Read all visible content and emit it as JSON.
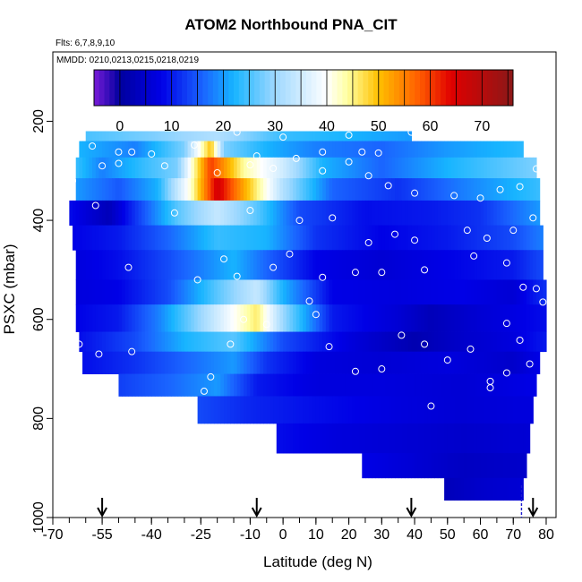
{
  "chart_data": {
    "type": "heatmap",
    "title": "ATOM2 Northbound PNA_CIT",
    "notes": [
      "Flts: 6,7,8,9,10",
      "MMDD: 0210,0213,0215,0218,0219"
    ],
    "xlabel": "Latitude (deg N)",
    "ylabel": "PSXC (mbar)",
    "xlim": [
      -70,
      83
    ],
    "ylim": [
      1000,
      60
    ],
    "y_reversed": true,
    "x_ticks": [
      -70,
      -55,
      -40,
      -25,
      -10,
      0,
      10,
      20,
      30,
      40,
      50,
      60,
      70,
      80
    ],
    "x_minor_step": 5,
    "y_ticks": [
      200,
      400,
      600,
      800,
      1000
    ],
    "colorbar": {
      "range": [
        -5,
        76
      ],
      "ticks": [
        0,
        10,
        20,
        30,
        40,
        50,
        60,
        70
      ],
      "colors": [
        "#7a1cd9",
        "#00009e",
        "#0000e6",
        "#1a64ff",
        "#17b4ff",
        "#9ed8ff",
        "#ffffff",
        "#ffffa0",
        "#ffc000",
        "#ff5a00",
        "#e00000",
        "#8b1818"
      ],
      "stops": [
        -5,
        0,
        8,
        16,
        22,
        30,
        40,
        44,
        50,
        58,
        64,
        76
      ]
    },
    "legend": "colorbar top",
    "arrows_lat": [
      -55,
      -8,
      39,
      76
    ],
    "dashed_lat": 72.5,
    "bands": [
      {
        "p_top": 220,
        "p_bot": 240,
        "x_start": -60,
        "x_end": 39,
        "c": [
          [
            -60,
            25
          ],
          [
            -40,
            28
          ],
          [
            -20,
            32
          ],
          [
            0,
            24
          ],
          [
            20,
            22
          ],
          [
            39,
            20
          ]
        ]
      },
      {
        "p_top": 240,
        "p_bot": 273,
        "x_start": -62,
        "x_end": 73,
        "c": [
          [
            -62,
            22
          ],
          [
            -45,
            18
          ],
          [
            -30,
            28
          ],
          [
            -22,
            50
          ],
          [
            -18,
            28
          ],
          [
            -5,
            22
          ],
          [
            10,
            18
          ],
          [
            30,
            16
          ],
          [
            50,
            20
          ],
          [
            73,
            23
          ]
        ]
      },
      {
        "p_top": 273,
        "p_bot": 315,
        "x_start": -63,
        "x_end": 77,
        "c": [
          [
            -63,
            24
          ],
          [
            -55,
            18
          ],
          [
            -42,
            24
          ],
          [
            -32,
            28
          ],
          [
            -22,
            60
          ],
          [
            -12,
            44
          ],
          [
            0,
            35
          ],
          [
            12,
            22
          ],
          [
            30,
            16
          ],
          [
            50,
            22
          ],
          [
            77,
            28
          ]
        ]
      },
      {
        "p_top": 315,
        "p_bot": 360,
        "x_start": -63,
        "x_end": 78,
        "c": [
          [
            -63,
            20
          ],
          [
            -50,
            15
          ],
          [
            -38,
            22
          ],
          [
            -28,
            42
          ],
          [
            -20,
            66
          ],
          [
            -12,
            52
          ],
          [
            0,
            32
          ],
          [
            15,
            16
          ],
          [
            35,
            12
          ],
          [
            55,
            18
          ],
          [
            78,
            24
          ]
        ]
      },
      {
        "p_top": 360,
        "p_bot": 410,
        "x_start": -65,
        "x_end": 78,
        "c": [
          [
            -65,
            9
          ],
          [
            -53,
            3
          ],
          [
            -45,
            12
          ],
          [
            -32,
            26
          ],
          [
            -20,
            34
          ],
          [
            -8,
            26
          ],
          [
            5,
            14
          ],
          [
            25,
            9
          ],
          [
            45,
            10
          ],
          [
            60,
            12
          ],
          [
            78,
            20
          ]
        ]
      },
      {
        "p_top": 410,
        "p_bot": 460,
        "x_start": -64,
        "x_end": 79,
        "c": [
          [
            -64,
            8
          ],
          [
            -50,
            10
          ],
          [
            -35,
            16
          ],
          [
            -20,
            24
          ],
          [
            -5,
            22
          ],
          [
            10,
            12
          ],
          [
            30,
            8
          ],
          [
            50,
            10
          ],
          [
            70,
            14
          ],
          [
            79,
            18
          ]
        ]
      },
      {
        "p_top": 460,
        "p_bot": 520,
        "x_start": -63,
        "x_end": 79,
        "c": [
          [
            -63,
            7
          ],
          [
            -50,
            9
          ],
          [
            -35,
            14
          ],
          [
            -25,
            18
          ],
          [
            -15,
            22
          ],
          [
            -5,
            16
          ],
          [
            10,
            8
          ],
          [
            30,
            6
          ],
          [
            50,
            8
          ],
          [
            70,
            10
          ],
          [
            79,
            14
          ]
        ]
      },
      {
        "p_top": 520,
        "p_bot": 570,
        "x_start": -63,
        "x_end": 80,
        "c": [
          [
            -63,
            7
          ],
          [
            -50,
            8
          ],
          [
            -35,
            14
          ],
          [
            -20,
            26
          ],
          [
            -8,
            34
          ],
          [
            0,
            22
          ],
          [
            15,
            8
          ],
          [
            35,
            7
          ],
          [
            55,
            8
          ],
          [
            70,
            6
          ],
          [
            80,
            12
          ]
        ]
      },
      {
        "p_top": 570,
        "p_bot": 625,
        "x_start": -63,
        "x_end": 80,
        "c": [
          [
            -63,
            8
          ],
          [
            -50,
            10
          ],
          [
            -38,
            18
          ],
          [
            -25,
            30
          ],
          [
            -15,
            40
          ],
          [
            -8,
            46
          ],
          [
            0,
            30
          ],
          [
            15,
            10
          ],
          [
            35,
            6
          ],
          [
            45,
            3
          ],
          [
            60,
            6
          ],
          [
            80,
            9
          ]
        ]
      },
      {
        "p_top": 625,
        "p_bot": 665,
        "x_start": -62,
        "x_end": 80,
        "c": [
          [
            -62,
            9
          ],
          [
            -45,
            14
          ],
          [
            -30,
            22
          ],
          [
            -15,
            26
          ],
          [
            0,
            14
          ],
          [
            20,
            7
          ],
          [
            40,
            2
          ],
          [
            55,
            5
          ],
          [
            70,
            7
          ],
          [
            80,
            10
          ]
        ]
      },
      {
        "p_top": 665,
        "p_bot": 710,
        "x_start": -61,
        "x_end": 78,
        "c": [
          [
            -61,
            9
          ],
          [
            -45,
            12
          ],
          [
            -30,
            16
          ],
          [
            -15,
            20
          ],
          [
            -5,
            12
          ],
          [
            10,
            7
          ],
          [
            30,
            6
          ],
          [
            50,
            7
          ],
          [
            70,
            5
          ],
          [
            78,
            8
          ]
        ]
      },
      {
        "p_top": 710,
        "p_bot": 755,
        "x_start": -50,
        "x_end": 77,
        "c": [
          [
            -50,
            13
          ],
          [
            -35,
            16
          ],
          [
            -20,
            20
          ],
          [
            -8,
            10
          ],
          [
            10,
            7
          ],
          [
            30,
            7
          ],
          [
            55,
            6
          ],
          [
            77,
            8
          ]
        ]
      },
      {
        "p_top": 755,
        "p_bot": 810,
        "x_start": -26,
        "x_end": 76,
        "c": [
          [
            -26,
            14
          ],
          [
            -10,
            11
          ],
          [
            10,
            9
          ],
          [
            35,
            7
          ],
          [
            55,
            6
          ],
          [
            76,
            7
          ]
        ]
      },
      {
        "p_top": 810,
        "p_bot": 870,
        "x_start": -2,
        "x_end": 75,
        "c": [
          [
            -2,
            9
          ],
          [
            15,
            7
          ],
          [
            35,
            6
          ],
          [
            55,
            5
          ],
          [
            75,
            6
          ]
        ]
      },
      {
        "p_top": 870,
        "p_bot": 920,
        "x_start": 24,
        "x_end": 74,
        "c": [
          [
            24,
            8
          ],
          [
            40,
            6
          ],
          [
            55,
            4
          ],
          [
            74,
            5
          ]
        ]
      },
      {
        "p_top": 920,
        "p_bot": 965,
        "x_start": 49,
        "x_end": 73,
        "c": [
          [
            49,
            3
          ],
          [
            60,
            5
          ],
          [
            73,
            6
          ]
        ]
      }
    ],
    "obs_points": [
      [
        -68,
        235
      ],
      [
        -63,
        238
      ],
      [
        -58,
        250
      ],
      [
        -50,
        262
      ],
      [
        -46,
        262
      ],
      [
        -40,
        266
      ],
      [
        -27,
        248
      ],
      [
        -14,
        222
      ],
      [
        -9,
        210
      ],
      [
        0,
        232
      ],
      [
        -8,
        270
      ],
      [
        4,
        275
      ],
      [
        12,
        262
      ],
      [
        20,
        228
      ],
      [
        24,
        262
      ],
      [
        29,
        264
      ],
      [
        39,
        222
      ],
      [
        47,
        222
      ],
      [
        -64,
        320
      ],
      [
        -55,
        290
      ],
      [
        -50,
        285
      ],
      [
        -36,
        290
      ],
      [
        -20,
        304
      ],
      [
        -10,
        288
      ],
      [
        -3,
        295
      ],
      [
        12,
        300
      ],
      [
        20,
        282
      ],
      [
        26,
        310
      ],
      [
        32,
        330
      ],
      [
        40,
        345
      ],
      [
        52,
        350
      ],
      [
        60,
        355
      ],
      [
        66,
        338
      ],
      [
        72,
        332
      ],
      [
        77,
        296
      ],
      [
        -67,
        410
      ],
      [
        -57,
        370
      ],
      [
        -33,
        385
      ],
      [
        -10,
        380
      ],
      [
        5,
        400
      ],
      [
        15,
        395
      ],
      [
        26,
        445
      ],
      [
        34,
        428
      ],
      [
        40,
        440
      ],
      [
        56,
        420
      ],
      [
        62,
        436
      ],
      [
        70,
        420
      ],
      [
        76,
        395
      ],
      [
        -47,
        495
      ],
      [
        -26,
        520
      ],
      [
        -18,
        478
      ],
      [
        -14,
        513
      ],
      [
        -3,
        495
      ],
      [
        2,
        468
      ],
      [
        12,
        515
      ],
      [
        22,
        505
      ],
      [
        30,
        505
      ],
      [
        43,
        500
      ],
      [
        58,
        472
      ],
      [
        68,
        486
      ],
      [
        73,
        535
      ],
      [
        77,
        538
      ],
      [
        79,
        565
      ],
      [
        -62,
        650
      ],
      [
        -56,
        670
      ],
      [
        -46,
        665
      ],
      [
        -22,
        716
      ],
      [
        -16,
        650
      ],
      [
        -12,
        600
      ],
      [
        -5,
        610
      ],
      [
        8,
        563
      ],
      [
        10,
        590
      ],
      [
        14,
        655
      ],
      [
        22,
        705
      ],
      [
        30,
        700
      ],
      [
        36,
        632
      ],
      [
        43,
        650
      ],
      [
        50,
        682
      ],
      [
        57,
        660
      ],
      [
        63,
        725
      ],
      [
        68,
        608
      ],
      [
        72,
        642
      ],
      [
        75,
        690
      ],
      [
        -54,
        725
      ],
      [
        -24,
        745
      ],
      [
        45,
        775
      ],
      [
        63,
        738
      ],
      [
        68,
        708
      ]
    ]
  }
}
